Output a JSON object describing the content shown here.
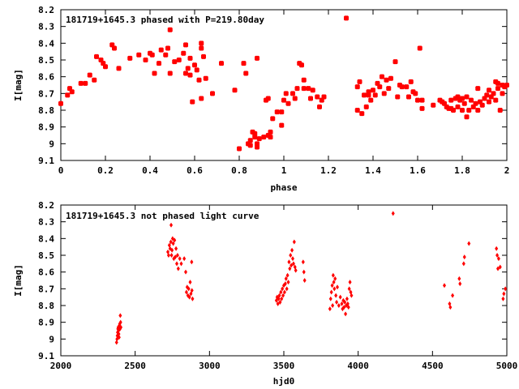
{
  "colors": {
    "series": "#ff0000",
    "axis": "#000000",
    "background": "#ffffff"
  },
  "chart_data": [
    {
      "type": "scatter",
      "title": "181719+1645.3 phased with P=219.80day",
      "xlabel": "phase",
      "ylabel": "I[mag]",
      "xlim": [
        0,
        2
      ],
      "ylim": [
        9.1,
        8.2
      ],
      "y_inverted": true,
      "xticks": [
        0,
        0.2,
        0.4,
        0.6,
        0.8,
        1,
        1.2,
        1.4,
        1.6,
        1.8,
        2
      ],
      "xtick_labels": [
        "0",
        "0.2",
        "0.4",
        "0.6",
        "0.8",
        "1",
        "1.2",
        "1.4",
        "1.6",
        "1.8",
        "2"
      ],
      "yticks": [
        8.2,
        8.3,
        8.4,
        8.5,
        8.6,
        8.7,
        8.8,
        8.9,
        9,
        9.1
      ],
      "ytick_labels": [
        "8.2",
        "8.3",
        "8.4",
        "8.5",
        "8.6",
        "8.7",
        "8.8",
        "8.9",
        "9",
        "9.1"
      ],
      "marker": "filled-square",
      "points": [
        [
          0.0,
          8.76
        ],
        [
          0.03,
          8.71
        ],
        [
          0.04,
          8.67
        ],
        [
          0.05,
          8.69
        ],
        [
          0.09,
          8.64
        ],
        [
          0.11,
          8.64
        ],
        [
          0.13,
          8.59
        ],
        [
          0.15,
          8.62
        ],
        [
          0.16,
          8.48
        ],
        [
          0.18,
          8.5
        ],
        [
          0.19,
          8.52
        ],
        [
          0.2,
          8.54
        ],
        [
          0.23,
          8.41
        ],
        [
          0.24,
          8.43
        ],
        [
          0.26,
          8.55
        ],
        [
          0.31,
          8.49
        ],
        [
          0.35,
          8.47
        ],
        [
          0.38,
          8.5
        ],
        [
          0.4,
          8.46
        ],
        [
          0.41,
          8.47
        ],
        [
          0.42,
          8.58
        ],
        [
          0.44,
          8.52
        ],
        [
          0.45,
          8.44
        ],
        [
          0.47,
          8.47
        ],
        [
          0.48,
          8.43
        ],
        [
          0.49,
          8.58
        ],
        [
          0.49,
          8.32
        ],
        [
          0.51,
          8.51
        ],
        [
          0.53,
          8.5
        ],
        [
          0.55,
          8.46
        ],
        [
          0.56,
          8.41
        ],
        [
          0.56,
          8.58
        ],
        [
          0.57,
          8.55
        ],
        [
          0.58,
          8.49
        ],
        [
          0.58,
          8.59
        ],
        [
          0.59,
          8.75
        ],
        [
          0.6,
          8.53
        ],
        [
          0.61,
          8.56
        ],
        [
          0.62,
          8.62
        ],
        [
          0.63,
          8.43
        ],
        [
          0.63,
          8.4
        ],
        [
          0.63,
          8.73
        ],
        [
          0.64,
          8.48
        ],
        [
          0.65,
          8.61
        ],
        [
          0.68,
          8.7
        ],
        [
          0.72,
          8.52
        ],
        [
          0.78,
          8.68
        ],
        [
          0.8,
          9.03
        ],
        [
          0.82,
          8.52
        ],
        [
          0.83,
          8.58
        ],
        [
          0.84,
          9.0
        ],
        [
          0.85,
          8.98
        ],
        [
          0.85,
          9.01
        ],
        [
          0.86,
          8.93
        ],
        [
          0.87,
          8.96
        ],
        [
          0.87,
          8.94
        ],
        [
          0.88,
          8.49
        ],
        [
          0.88,
          9.0
        ],
        [
          0.88,
          9.02
        ],
        [
          0.89,
          8.97
        ],
        [
          0.91,
          8.96
        ],
        [
          0.92,
          8.74
        ],
        [
          0.93,
          8.73
        ],
        [
          0.93,
          8.95
        ],
        [
          0.94,
          8.93
        ],
        [
          0.94,
          8.96
        ],
        [
          0.95,
          8.85
        ],
        [
          0.97,
          8.81
        ],
        [
          0.99,
          8.81
        ],
        [
          0.99,
          8.89
        ],
        [
          1.0,
          8.74
        ],
        [
          1.01,
          8.7
        ],
        [
          1.02,
          8.76
        ],
        [
          1.04,
          8.7
        ],
        [
          1.05,
          8.73
        ],
        [
          1.06,
          8.67
        ],
        [
          1.07,
          8.52
        ],
        [
          1.08,
          8.53
        ],
        [
          1.09,
          8.62
        ],
        [
          1.09,
          8.67
        ],
        [
          1.11,
          8.67
        ],
        [
          1.12,
          8.73
        ],
        [
          1.13,
          8.68
        ],
        [
          1.15,
          8.72
        ],
        [
          1.16,
          8.78
        ],
        [
          1.17,
          8.74
        ],
        [
          1.18,
          8.72
        ],
        [
          1.28,
          8.25
        ],
        [
          1.33,
          8.66
        ],
        [
          1.33,
          8.8
        ],
        [
          1.34,
          8.63
        ],
        [
          1.35,
          8.82
        ],
        [
          1.36,
          8.71
        ],
        [
          1.37,
          8.78
        ],
        [
          1.38,
          8.69
        ],
        [
          1.39,
          8.74
        ],
        [
          1.4,
          8.68
        ],
        [
          1.41,
          8.71
        ],
        [
          1.42,
          8.64
        ],
        [
          1.43,
          8.66
        ],
        [
          1.44,
          8.6
        ],
        [
          1.45,
          8.7
        ],
        [
          1.46,
          8.62
        ],
        [
          1.47,
          8.67
        ],
        [
          1.48,
          8.61
        ],
        [
          1.5,
          8.51
        ],
        [
          1.51,
          8.72
        ],
        [
          1.52,
          8.65
        ],
        [
          1.53,
          8.66
        ],
        [
          1.55,
          8.66
        ],
        [
          1.56,
          8.72
        ],
        [
          1.57,
          8.63
        ],
        [
          1.58,
          8.69
        ],
        [
          1.59,
          8.7
        ],
        [
          1.6,
          8.74
        ],
        [
          1.61,
          8.43
        ],
        [
          1.62,
          8.79
        ],
        [
          1.62,
          8.74
        ],
        [
          1.67,
          8.77
        ],
        [
          1.7,
          8.74
        ],
        [
          1.71,
          8.75
        ],
        [
          1.72,
          8.76
        ],
        [
          1.73,
          8.78
        ],
        [
          1.74,
          8.79
        ],
        [
          1.75,
          8.79
        ],
        [
          1.75,
          8.74
        ],
        [
          1.76,
          8.8
        ],
        [
          1.77,
          8.73
        ],
        [
          1.78,
          8.78
        ],
        [
          1.78,
          8.72
        ],
        [
          1.79,
          8.74
        ],
        [
          1.8,
          8.8
        ],
        [
          1.8,
          8.73
        ],
        [
          1.81,
          8.76
        ],
        [
          1.82,
          8.72
        ],
        [
          1.82,
          8.84
        ],
        [
          1.83,
          8.8
        ],
        [
          1.84,
          8.74
        ],
        [
          1.85,
          8.78
        ],
        [
          1.86,
          8.76
        ],
        [
          1.87,
          8.8
        ],
        [
          1.87,
          8.67
        ],
        [
          1.88,
          8.75
        ],
        [
          1.89,
          8.77
        ],
        [
          1.9,
          8.73
        ],
        [
          1.91,
          8.71
        ],
        [
          1.92,
          8.68
        ],
        [
          1.92,
          8.75
        ],
        [
          1.93,
          8.72
        ],
        [
          1.94,
          8.7
        ],
        [
          1.95,
          8.63
        ],
        [
          1.95,
          8.74
        ],
        [
          1.96,
          8.67
        ],
        [
          1.96,
          8.64
        ],
        [
          1.97,
          8.8
        ],
        [
          1.98,
          8.65
        ],
        [
          1.98,
          8.7
        ],
        [
          1.99,
          8.66
        ],
        [
          2.0,
          8.65
        ],
        [
          1.38,
          8.71
        ]
      ]
    },
    {
      "type": "scatter",
      "title": "181719+1645.3 not phased light curve",
      "xlabel": "hjd0",
      "ylabel": "I[mag]",
      "xlim": [
        2000,
        5000
      ],
      "ylim": [
        9.1,
        8.2
      ],
      "y_inverted": true,
      "xticks": [
        2000,
        2500,
        3000,
        3500,
        4000,
        4500,
        5000
      ],
      "xtick_labels": [
        "2000",
        "2500",
        "3000",
        "3500",
        "4000",
        "4500",
        "5000"
      ],
      "yticks": [
        8.2,
        8.3,
        8.4,
        8.5,
        8.6,
        8.7,
        8.8,
        8.9,
        9,
        9.1
      ],
      "ytick_labels": [
        "8.2",
        "8.3",
        "8.4",
        "8.5",
        "8.6",
        "8.7",
        "8.8",
        "8.9",
        "9",
        "9.1"
      ],
      "marker": "filled-diamond",
      "points": [
        [
          2375,
          9.02
        ],
        [
          2378,
          9.0
        ],
        [
          2380,
          8.98
        ],
        [
          2382,
          8.96
        ],
        [
          2384,
          8.94
        ],
        [
          2386,
          8.93
        ],
        [
          2388,
          8.95
        ],
        [
          2390,
          8.97
        ],
        [
          2392,
          8.99
        ],
        [
          2394,
          8.92
        ],
        [
          2396,
          8.91
        ],
        [
          2398,
          8.94
        ],
        [
          2400,
          8.86
        ],
        [
          2402,
          8.9
        ],
        [
          2404,
          8.93
        ],
        [
          2720,
          8.48
        ],
        [
          2725,
          8.5
        ],
        [
          2730,
          8.44
        ],
        [
          2735,
          8.46
        ],
        [
          2740,
          8.42
        ],
        [
          2742,
          8.32
        ],
        [
          2745,
          8.5
        ],
        [
          2748,
          8.47
        ],
        [
          2752,
          8.4
        ],
        [
          2756,
          8.43
        ],
        [
          2760,
          8.52
        ],
        [
          2765,
          8.41
        ],
        [
          2770,
          8.51
        ],
        [
          2775,
          8.46
        ],
        [
          2780,
          8.55
        ],
        [
          2785,
          8.5
        ],
        [
          2790,
          8.58
        ],
        [
          2800,
          8.52
        ],
        [
          2810,
          8.55
        ],
        [
          2830,
          8.52
        ],
        [
          2840,
          8.6
        ],
        [
          2845,
          8.72
        ],
        [
          2850,
          8.69
        ],
        [
          2855,
          8.74
        ],
        [
          2860,
          8.7
        ],
        [
          2865,
          8.75
        ],
        [
          2870,
          8.66
        ],
        [
          2875,
          8.73
        ],
        [
          2880,
          8.54
        ],
        [
          2882,
          8.71
        ],
        [
          2886,
          8.76
        ],
        [
          3450,
          8.77
        ],
        [
          3455,
          8.75
        ],
        [
          3460,
          8.79
        ],
        [
          3465,
          8.76
        ],
        [
          3470,
          8.74
        ],
        [
          3475,
          8.78
        ],
        [
          3480,
          8.72
        ],
        [
          3485,
          8.76
        ],
        [
          3490,
          8.7
        ],
        [
          3495,
          8.74
        ],
        [
          3500,
          8.68
        ],
        [
          3505,
          8.72
        ],
        [
          3510,
          8.67
        ],
        [
          3515,
          8.64
        ],
        [
          3520,
          8.7
        ],
        [
          3525,
          8.62
        ],
        [
          3530,
          8.66
        ],
        [
          3535,
          8.54
        ],
        [
          3540,
          8.58
        ],
        [
          3545,
          8.5
        ],
        [
          3550,
          8.56
        ],
        [
          3555,
          8.47
        ],
        [
          3560,
          8.52
        ],
        [
          3565,
          8.55
        ],
        [
          3570,
          8.42
        ],
        [
          3575,
          8.57
        ],
        [
          3580,
          8.59
        ],
        [
          3630,
          8.54
        ],
        [
          3635,
          8.6
        ],
        [
          3640,
          8.65
        ],
        [
          3810,
          8.82
        ],
        [
          3815,
          8.76
        ],
        [
          3820,
          8.72
        ],
        [
          3825,
          8.68
        ],
        [
          3828,
          8.8
        ],
        [
          3832,
          8.62
        ],
        [
          3836,
          8.66
        ],
        [
          3840,
          8.7
        ],
        [
          3845,
          8.64
        ],
        [
          3850,
          8.74
        ],
        [
          3855,
          8.78
        ],
        [
          3860,
          8.69
        ],
        [
          3870,
          8.8
        ],
        [
          3880,
          8.75
        ],
        [
          3890,
          8.79
        ],
        [
          3895,
          8.82
        ],
        [
          3900,
          8.77
        ],
        [
          3905,
          8.81
        ],
        [
          3910,
          8.78
        ],
        [
          3915,
          8.85
        ],
        [
          3920,
          8.8
        ],
        [
          3925,
          8.76
        ],
        [
          3930,
          8.79
        ],
        [
          3935,
          8.81
        ],
        [
          3940,
          8.7
        ],
        [
          3945,
          8.66
        ],
        [
          3950,
          8.72
        ],
        [
          3955,
          8.74
        ],
        [
          4235,
          8.25
        ],
        [
          4580,
          8.68
        ],
        [
          4615,
          8.79
        ],
        [
          4620,
          8.81
        ],
        [
          4635,
          8.74
        ],
        [
          4680,
          8.64
        ],
        [
          4685,
          8.67
        ],
        [
          4710,
          8.55
        ],
        [
          4715,
          8.51
        ],
        [
          4745,
          8.43
        ],
        [
          4930,
          8.46
        ],
        [
          4935,
          8.5
        ],
        [
          4940,
          8.58
        ],
        [
          4945,
          8.52
        ],
        [
          4955,
          8.57
        ],
        [
          4975,
          8.76
        ],
        [
          4980,
          8.73
        ],
        [
          4990,
          8.7
        ]
      ]
    }
  ]
}
